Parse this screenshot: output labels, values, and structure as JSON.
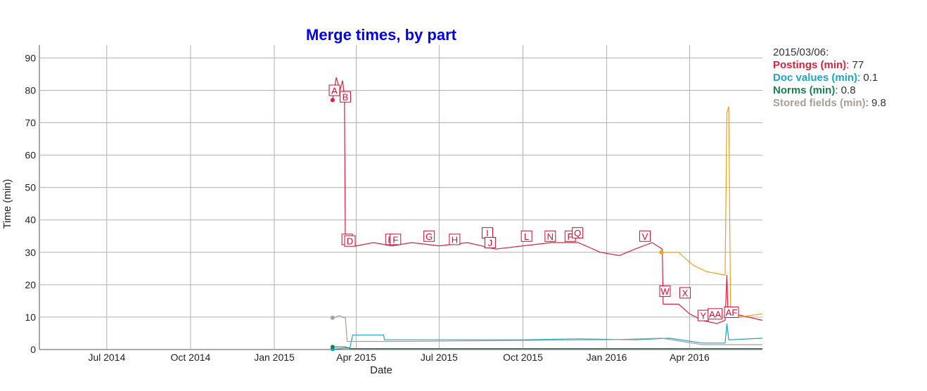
{
  "chart_data": {
    "type": "line",
    "title": "Merge times, by part",
    "xlabel": "Date",
    "ylabel": "Time (min)",
    "xlim": [
      "2014-04-18",
      "2016-06-20"
    ],
    "ylim": [
      0,
      94
    ],
    "x_ticks": [
      {
        "date": "2014-07-01",
        "label": "Jul 2014"
      },
      {
        "date": "2014-10-01",
        "label": "Oct 2014"
      },
      {
        "date": "2015-01-01",
        "label": "Jan 2015"
      },
      {
        "date": "2015-04-01",
        "label": "Apr 2015"
      },
      {
        "date": "2015-07-01",
        "label": "Jul 2015"
      },
      {
        "date": "2015-10-01",
        "label": "Oct 2015"
      },
      {
        "date": "2016-01-01",
        "label": "Jan 2016"
      },
      {
        "date": "2016-04-01",
        "label": "Apr 2016"
      }
    ],
    "y_ticks": [
      0,
      10,
      20,
      30,
      40,
      50,
      60,
      70,
      80,
      90
    ],
    "grid": true,
    "legend_position": "right",
    "legend_date": "2015/03/06:",
    "series": [
      {
        "name": "Postings (min)",
        "color": "#d6233c",
        "legend_value": "77",
        "points": [
          [
            "2015-03-06",
            77
          ],
          [
            "2015-03-10",
            84
          ],
          [
            "2015-03-14",
            80
          ],
          [
            "2015-03-17",
            83
          ],
          [
            "2015-03-19",
            78
          ],
          [
            "2015-03-20",
            33
          ],
          [
            "2015-04-01",
            32
          ],
          [
            "2015-04-20",
            33
          ],
          [
            "2015-05-10",
            32
          ],
          [
            "2015-06-01",
            33
          ],
          [
            "2015-07-01",
            32
          ],
          [
            "2015-08-01",
            33
          ],
          [
            "2015-09-01",
            31
          ],
          [
            "2015-10-01",
            32
          ],
          [
            "2015-11-01",
            33
          ],
          [
            "2015-12-01",
            33
          ],
          [
            "2015-12-25",
            30
          ],
          [
            "2016-01-15",
            29
          ],
          [
            "2016-02-01",
            31
          ],
          [
            "2016-02-20",
            33
          ],
          [
            "2016-03-02",
            31
          ],
          [
            "2016-03-03",
            14
          ],
          [
            "2016-03-20",
            14
          ],
          [
            "2016-04-01",
            11
          ],
          [
            "2016-04-15",
            9
          ],
          [
            "2016-05-01",
            8
          ],
          [
            "2016-05-10",
            9
          ],
          [
            "2016-05-12",
            23
          ],
          [
            "2016-05-13",
            13
          ],
          [
            "2016-05-20",
            11
          ],
          [
            "2016-06-20",
            9
          ]
        ]
      },
      {
        "name": "Doc values (min)",
        "color": "#1fa3c6",
        "legend_value": "0.1",
        "points": [
          [
            "2015-03-06",
            0.1
          ],
          [
            "2015-03-25",
            0.5
          ],
          [
            "2015-03-28",
            4.5
          ],
          [
            "2015-05-01",
            4.5
          ],
          [
            "2015-05-02",
            3
          ],
          [
            "2015-07-01",
            3
          ],
          [
            "2015-10-01",
            3
          ],
          [
            "2015-12-01",
            3.3
          ],
          [
            "2016-02-01",
            3
          ],
          [
            "2016-03-10",
            3.5
          ],
          [
            "2016-04-15",
            2
          ],
          [
            "2016-05-10",
            2
          ],
          [
            "2016-05-12",
            8
          ],
          [
            "2016-05-14",
            3
          ],
          [
            "2016-06-20",
            3.5
          ]
        ]
      },
      {
        "name": "Norms (min)",
        "color": "#1b7f4f",
        "legend_value": "0.8",
        "points": [
          [
            "2015-03-06",
            0.8
          ],
          [
            "2015-03-20",
            0.8
          ],
          [
            "2015-03-25",
            0.3
          ],
          [
            "2016-06-20",
            0.3
          ]
        ]
      },
      {
        "name": "Stored fields (min)",
        "color": "#a89f95",
        "legend_value": "9.8",
        "points": [
          [
            "2015-03-06",
            9.8
          ],
          [
            "2015-03-14",
            10.5
          ],
          [
            "2015-03-18",
            9.8
          ],
          [
            "2015-03-20",
            10
          ],
          [
            "2015-03-22",
            2.5
          ],
          [
            "2015-06-01",
            2.5
          ],
          [
            "2015-10-01",
            2.8
          ],
          [
            "2016-01-01",
            3
          ],
          [
            "2016-03-01",
            3.5
          ],
          [
            "2016-04-15",
            1.5
          ],
          [
            "2016-05-10",
            1.5
          ],
          [
            "2016-06-20",
            1.5
          ]
        ]
      },
      {
        "color": "#f0a020",
        "points": [
          [
            "2016-03-01",
            30
          ],
          [
            "2016-03-20",
            30
          ],
          [
            "2016-04-05",
            26
          ],
          [
            "2016-04-20",
            24
          ],
          [
            "2016-05-10",
            23
          ],
          [
            "2016-05-12",
            73
          ],
          [
            "2016-05-14",
            75
          ],
          [
            "2016-05-16",
            12
          ],
          [
            "2016-05-25",
            10
          ],
          [
            "2016-06-20",
            11
          ]
        ]
      }
    ],
    "annotations": [
      {
        "label": "A",
        "date": "2015-03-08",
        "y": 80
      },
      {
        "label": "B",
        "date": "2015-03-20",
        "y": 78
      },
      {
        "label": "C",
        "date": "2015-03-22",
        "y": 34
      },
      {
        "label": "D",
        "date": "2015-03-25",
        "y": 33.5
      },
      {
        "label": "E",
        "date": "2015-05-09",
        "y": 34
      },
      {
        "label": "F",
        "date": "2015-05-14",
        "y": 34
      },
      {
        "label": "G",
        "date": "2015-06-20",
        "y": 35
      },
      {
        "label": "H",
        "date": "2015-07-18",
        "y": 34
      },
      {
        "label": "I",
        "date": "2015-08-23",
        "y": 36
      },
      {
        "label": "J",
        "date": "2015-08-26",
        "y": 33
      },
      {
        "label": "L",
        "date": "2015-10-05",
        "y": 35
      },
      {
        "label": "N",
        "date": "2015-10-31",
        "y": 35
      },
      {
        "label": "P",
        "date": "2015-11-22",
        "y": 35
      },
      {
        "label": "Q",
        "date": "2015-11-30",
        "y": 36
      },
      {
        "label": "V",
        "date": "2016-02-12",
        "y": 35
      },
      {
        "label": "W",
        "date": "2016-03-05",
        "y": 18
      },
      {
        "label": "X",
        "date": "2016-03-27",
        "y": 17.5
      },
      {
        "label": "Y",
        "date": "2016-04-16",
        "y": 10.5
      },
      {
        "label": "AA",
        "date": "2016-04-29",
        "y": 11
      },
      {
        "label": "AF",
        "date": "2016-05-17",
        "y": 11.5
      }
    ]
  },
  "legend": {
    "date": "2015/03/06:",
    "rows": [
      {
        "name": "Postings (min)",
        "value": "77",
        "color": "#d6233c"
      },
      {
        "name": "Doc values (min)",
        "value": "0.1",
        "color": "#1fa3c6"
      },
      {
        "name": "Norms (min)",
        "value": "0.8",
        "color": "#1b7f4f"
      },
      {
        "name": "Stored fields (min)",
        "value": "9.8",
        "color": "#a89f95"
      }
    ]
  }
}
